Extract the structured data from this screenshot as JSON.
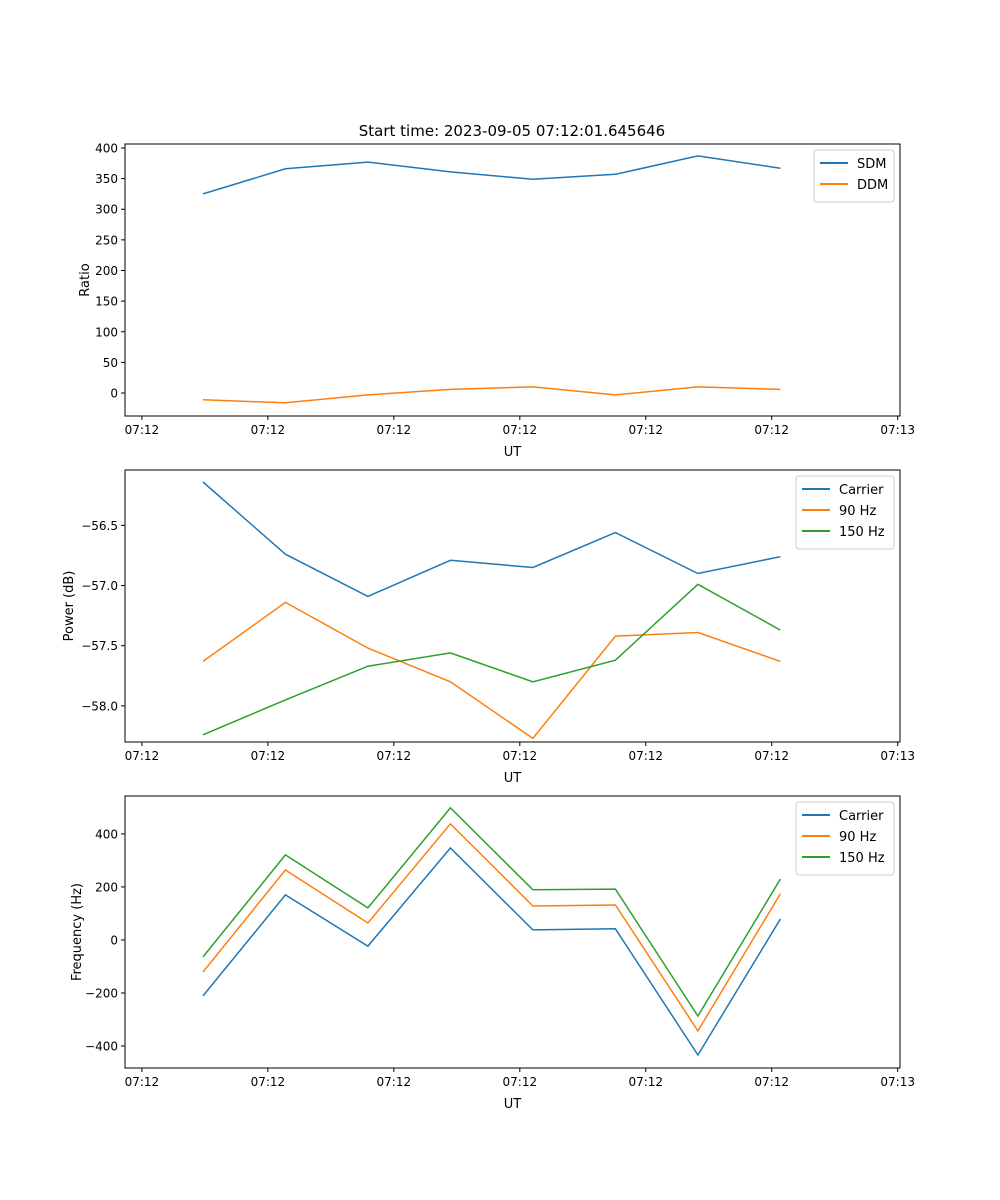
{
  "title": "Start time: 2023-09-05 07:12:01.645646",
  "chart_data": [
    {
      "type": "line",
      "xlabel": "UT",
      "ylabel": "Ratio",
      "x": [
        0,
        1,
        2,
        3,
        4,
        5,
        6,
        7
      ],
      "xlim": [
        -0.945,
        8.45
      ],
      "xticks": [
        -0.74,
        0.787,
        2.314,
        3.841,
        5.368,
        6.895,
        8.422
      ],
      "xtick_labels": [
        "07:12",
        "07:12",
        "07:12",
        "07:12",
        "07:12",
        "07:12",
        "07:13"
      ],
      "ylim": [
        -37.5,
        406.5
      ],
      "yticks": [
        0,
        50,
        100,
        150,
        200,
        250,
        300,
        350,
        400
      ],
      "ytick_labels": [
        "0",
        "50",
        "100",
        "150",
        "200",
        "250",
        "300",
        "350",
        "400"
      ],
      "legend": "top-right",
      "series": [
        {
          "name": "SDM",
          "color": "#1f77b4",
          "values": [
            325,
            366,
            377,
            361,
            349,
            357,
            387,
            367
          ]
        },
        {
          "name": "DDM",
          "color": "#ff7f0e",
          "values": [
            -11,
            -16,
            -3,
            6,
            10,
            -3,
            10,
            6
          ]
        }
      ]
    },
    {
      "type": "line",
      "xlabel": "UT",
      "ylabel": "Power (dB)",
      "x": [
        0,
        1,
        2,
        3,
        4,
        5,
        6,
        7
      ],
      "xlim": [
        -0.945,
        8.45
      ],
      "xticks": [
        -0.74,
        0.787,
        2.314,
        3.841,
        5.368,
        6.895,
        8.422
      ],
      "xtick_labels": [
        "07:12",
        "07:12",
        "07:12",
        "07:12",
        "07:12",
        "07:12",
        "07:13"
      ],
      "ylim": [
        -58.3,
        -56.04
      ],
      "yticks": [
        -58.0,
        -57.5,
        -57.0,
        -56.5
      ],
      "ytick_labels": [
        "−58.0",
        "−57.5",
        "−57.0",
        "−56.5"
      ],
      "legend": "top-right",
      "series": [
        {
          "name": "Carrier",
          "color": "#1f77b4",
          "values": [
            -56.14,
            -56.74,
            -57.09,
            -56.79,
            -56.85,
            -56.56,
            -56.9,
            -56.76
          ]
        },
        {
          "name": "90 Hz",
          "color": "#ff7f0e",
          "values": [
            -57.63,
            -57.14,
            -57.52,
            -57.8,
            -58.27,
            -57.42,
            -57.39,
            -57.63
          ]
        },
        {
          "name": "150 Hz",
          "color": "#2ca02c",
          "values": [
            -58.24,
            -57.95,
            -57.67,
            -57.56,
            -57.8,
            -57.62,
            -56.99,
            -57.37
          ]
        }
      ]
    },
    {
      "type": "line",
      "xlabel": "UT",
      "ylabel": "Frequency (Hz)",
      "x": [
        0,
        1,
        2,
        3,
        4,
        5,
        6,
        7
      ],
      "xlim": [
        -0.945,
        8.45
      ],
      "xticks": [
        -0.74,
        0.787,
        2.314,
        3.841,
        5.368,
        6.895,
        8.422
      ],
      "xtick_labels": [
        "07:12",
        "07:12",
        "07:12",
        "07:12",
        "07:12",
        "07:12",
        "07:13"
      ],
      "ylim": [
        -483,
        543
      ],
      "yticks": [
        -400,
        -200,
        0,
        200,
        400
      ],
      "ytick_labels": [
        "−400",
        "−200",
        "0",
        "200",
        "400"
      ],
      "legend": "top-right",
      "series": [
        {
          "name": "Carrier",
          "color": "#1f77b4",
          "values": [
            -211,
            170,
            -23,
            347,
            38,
            42,
            -434,
            79
          ]
        },
        {
          "name": "90 Hz",
          "color": "#ff7f0e",
          "values": [
            -121,
            264,
            64,
            438,
            128,
            132,
            -343,
            174
          ]
        },
        {
          "name": "150 Hz",
          "color": "#2ca02c",
          "values": [
            -64,
            321,
            121,
            498,
            189,
            192,
            -287,
            230
          ]
        }
      ]
    }
  ]
}
